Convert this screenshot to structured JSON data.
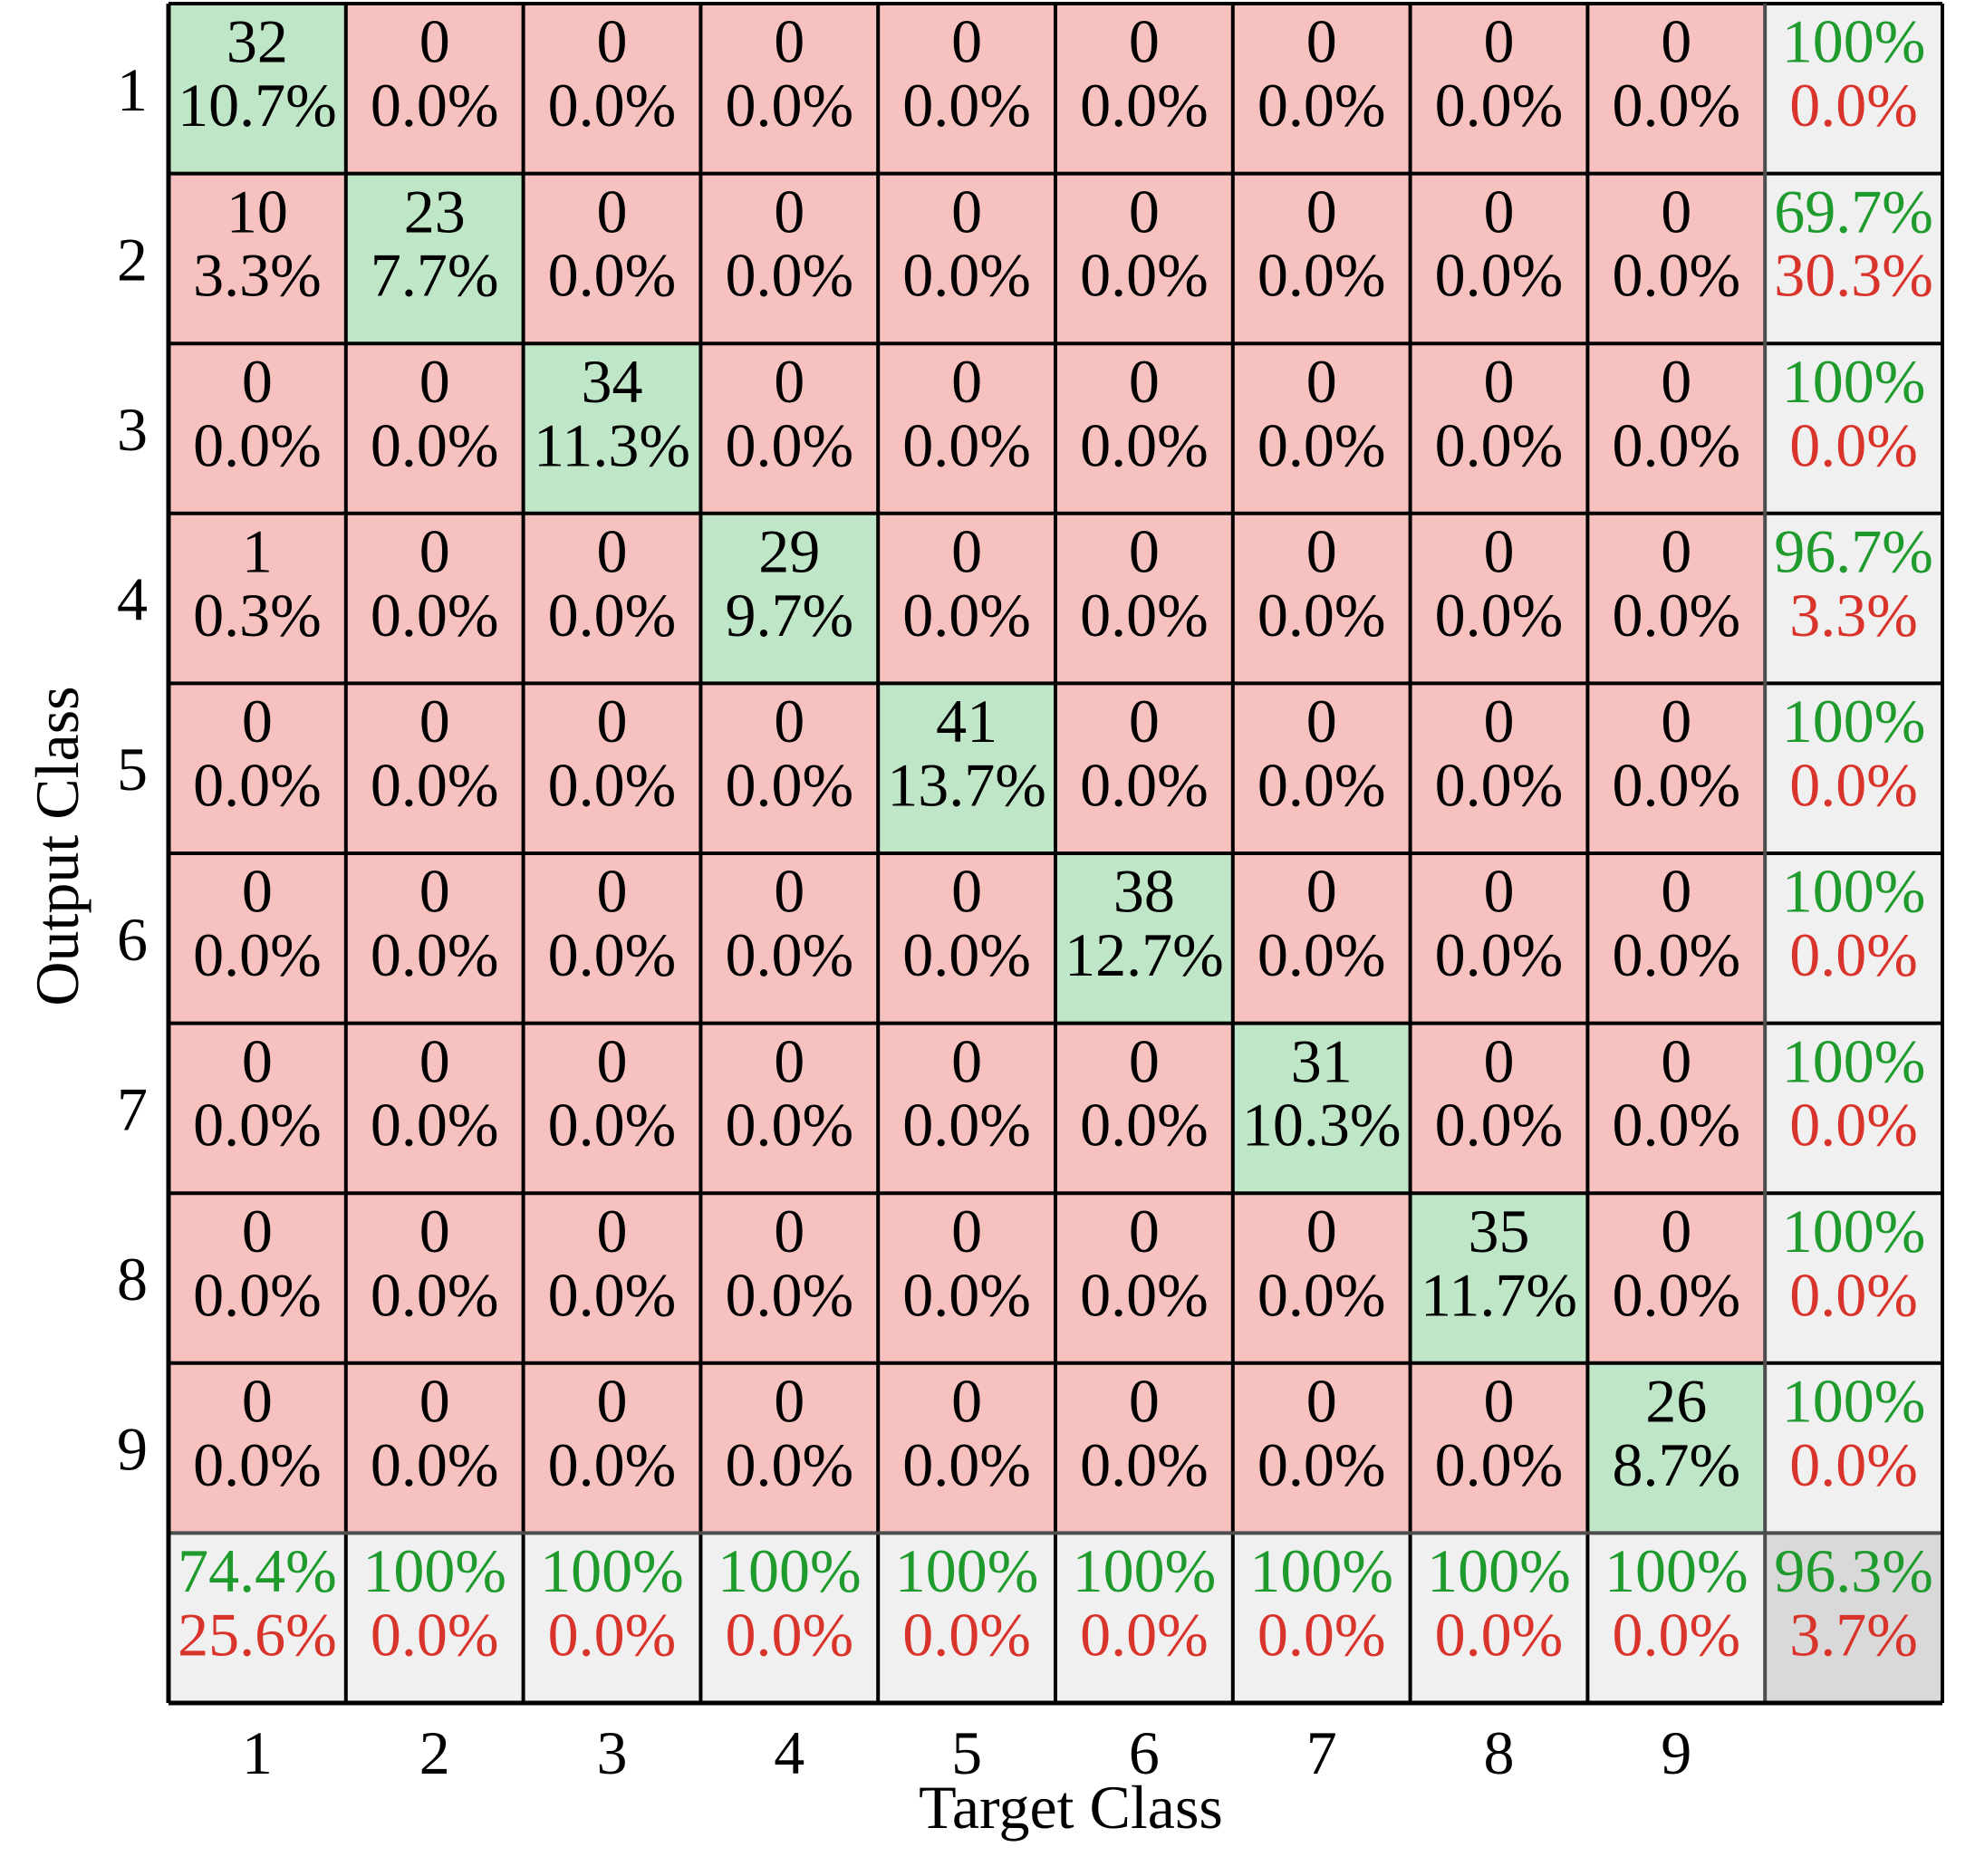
{
  "chart_data": {
    "type": "heatmap",
    "title": "",
    "xlabel": "Target Class",
    "ylabel": "Output Class",
    "classes": [
      "1",
      "2",
      "3",
      "4",
      "5",
      "6",
      "7",
      "8",
      "9"
    ],
    "counts": [
      [
        32,
        0,
        0,
        0,
        0,
        0,
        0,
        0,
        0
      ],
      [
        10,
        23,
        0,
        0,
        0,
        0,
        0,
        0,
        0
      ],
      [
        0,
        0,
        34,
        0,
        0,
        0,
        0,
        0,
        0
      ],
      [
        1,
        0,
        0,
        29,
        0,
        0,
        0,
        0,
        0
      ],
      [
        0,
        0,
        0,
        0,
        41,
        0,
        0,
        0,
        0
      ],
      [
        0,
        0,
        0,
        0,
        0,
        38,
        0,
        0,
        0
      ],
      [
        0,
        0,
        0,
        0,
        0,
        0,
        31,
        0,
        0
      ],
      [
        0,
        0,
        0,
        0,
        0,
        0,
        0,
        35,
        0
      ],
      [
        0,
        0,
        0,
        0,
        0,
        0,
        0,
        0,
        26
      ]
    ],
    "percents": [
      [
        "10.7%",
        "0.0%",
        "0.0%",
        "0.0%",
        "0.0%",
        "0.0%",
        "0.0%",
        "0.0%",
        "0.0%"
      ],
      [
        "3.3%",
        "7.7%",
        "0.0%",
        "0.0%",
        "0.0%",
        "0.0%",
        "0.0%",
        "0.0%",
        "0.0%"
      ],
      [
        "0.0%",
        "0.0%",
        "11.3%",
        "0.0%",
        "0.0%",
        "0.0%",
        "0.0%",
        "0.0%",
        "0.0%"
      ],
      [
        "0.3%",
        "0.0%",
        "0.0%",
        "9.7%",
        "0.0%",
        "0.0%",
        "0.0%",
        "0.0%",
        "0.0%"
      ],
      [
        "0.0%",
        "0.0%",
        "0.0%",
        "0.0%",
        "13.7%",
        "0.0%",
        "0.0%",
        "0.0%",
        "0.0%"
      ],
      [
        "0.0%",
        "0.0%",
        "0.0%",
        "0.0%",
        "0.0%",
        "12.7%",
        "0.0%",
        "0.0%",
        "0.0%"
      ],
      [
        "0.0%",
        "0.0%",
        "0.0%",
        "0.0%",
        "0.0%",
        "0.0%",
        "10.3%",
        "0.0%",
        "0.0%"
      ],
      [
        "0.0%",
        "0.0%",
        "0.0%",
        "0.0%",
        "0.0%",
        "0.0%",
        "0.0%",
        "11.7%",
        "0.0%"
      ],
      [
        "0.0%",
        "0.0%",
        "0.0%",
        "0.0%",
        "0.0%",
        "0.0%",
        "0.0%",
        "0.0%",
        "8.7%"
      ]
    ],
    "row_summary": [
      {
        "correct": "100%",
        "incorrect": "0.0%"
      },
      {
        "correct": "69.7%",
        "incorrect": "30.3%"
      },
      {
        "correct": "100%",
        "incorrect": "0.0%"
      },
      {
        "correct": "96.7%",
        "incorrect": "3.3%"
      },
      {
        "correct": "100%",
        "incorrect": "0.0%"
      },
      {
        "correct": "100%",
        "incorrect": "0.0%"
      },
      {
        "correct": "100%",
        "incorrect": "0.0%"
      },
      {
        "correct": "100%",
        "incorrect": "0.0%"
      },
      {
        "correct": "100%",
        "incorrect": "0.0%"
      }
    ],
    "column_summary": [
      {
        "correct": "74.4%",
        "incorrect": "25.6%"
      },
      {
        "correct": "100%",
        "incorrect": "0.0%"
      },
      {
        "correct": "100%",
        "incorrect": "0.0%"
      },
      {
        "correct": "100%",
        "incorrect": "0.0%"
      },
      {
        "correct": "100%",
        "incorrect": "0.0%"
      },
      {
        "correct": "100%",
        "incorrect": "0.0%"
      },
      {
        "correct": "100%",
        "incorrect": "0.0%"
      },
      {
        "correct": "100%",
        "incorrect": "0.0%"
      },
      {
        "correct": "100%",
        "incorrect": "0.0%"
      }
    ],
    "overall": {
      "correct": "96.3%",
      "incorrect": "3.7%"
    },
    "grid": true,
    "legend": "none",
    "colors": {
      "diagonal_fill": "#bfe6c6",
      "off_diagonal_fill": "#f6c1be",
      "summary_fill": "#f0f0f0",
      "overall_fill": "#d9d9d9",
      "correct_text": "#1f9b2e",
      "incorrect_text": "#d9342b",
      "count_text": "#000000",
      "grid_line": "#000000",
      "summary_line": "#4d4d4d"
    }
  }
}
